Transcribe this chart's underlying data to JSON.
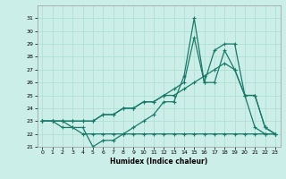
{
  "xlabel": "Humidex (Indice chaleur)",
  "bg_color": "#cceee8",
  "line_color": "#1a7a6a",
  "grid_color": "#aaddcc",
  "xlim": [
    -0.5,
    23.5
  ],
  "ylim": [
    21,
    32
  ],
  "yticks": [
    21,
    22,
    23,
    24,
    25,
    26,
    27,
    28,
    29,
    30,
    31
  ],
  "xticks": [
    0,
    1,
    2,
    3,
    4,
    5,
    6,
    7,
    8,
    9,
    10,
    11,
    12,
    13,
    14,
    15,
    16,
    17,
    18,
    19,
    20,
    21,
    22,
    23
  ],
  "series": [
    {
      "x": [
        0,
        1,
        2,
        3,
        4,
        5,
        6,
        7,
        8,
        9,
        10,
        11,
        12,
        13,
        14,
        15,
        16,
        17,
        18,
        19,
        20,
        21,
        22,
        23
      ],
      "y": [
        23,
        23,
        23,
        22.5,
        22.5,
        21,
        21.5,
        21.5,
        22,
        22.5,
        23,
        23.5,
        24.5,
        24.5,
        26.5,
        31,
        26,
        26,
        28.5,
        27,
        25,
        22.5,
        22,
        22
      ]
    },
    {
      "x": [
        0,
        1,
        2,
        3,
        4,
        5,
        6,
        7,
        8,
        9,
        10,
        11,
        12,
        13,
        14,
        15,
        16,
        17,
        18,
        19,
        20,
        21,
        22,
        23
      ],
      "y": [
        23,
        23,
        22.5,
        22.5,
        22,
        22,
        22,
        22,
        22,
        22,
        22,
        22,
        22,
        22,
        22,
        22,
        22,
        22,
        22,
        22,
        22,
        22,
        22,
        22
      ]
    },
    {
      "x": [
        0,
        1,
        2,
        3,
        4,
        5,
        6,
        7,
        8,
        9,
        10,
        11,
        12,
        13,
        14,
        15,
        16,
        17,
        18,
        19,
        20,
        21,
        22,
        23
      ],
      "y": [
        23,
        23,
        23,
        23,
        23,
        23,
        23.5,
        23.5,
        24,
        24,
        24.5,
        24.5,
        25,
        25.5,
        26,
        29.5,
        26,
        28.5,
        29,
        29,
        25,
        25,
        22.5,
        22
      ]
    },
    {
      "x": [
        0,
        1,
        2,
        3,
        4,
        5,
        6,
        7,
        8,
        9,
        10,
        11,
        12,
        13,
        14,
        15,
        16,
        17,
        18,
        19,
        20,
        21,
        22,
        23
      ],
      "y": [
        23,
        23,
        23,
        23,
        23,
        23,
        23.5,
        23.5,
        24,
        24,
        24.5,
        24.5,
        25,
        25,
        25.5,
        26,
        26.5,
        27,
        27.5,
        27,
        25,
        25,
        22.5,
        22
      ]
    }
  ]
}
